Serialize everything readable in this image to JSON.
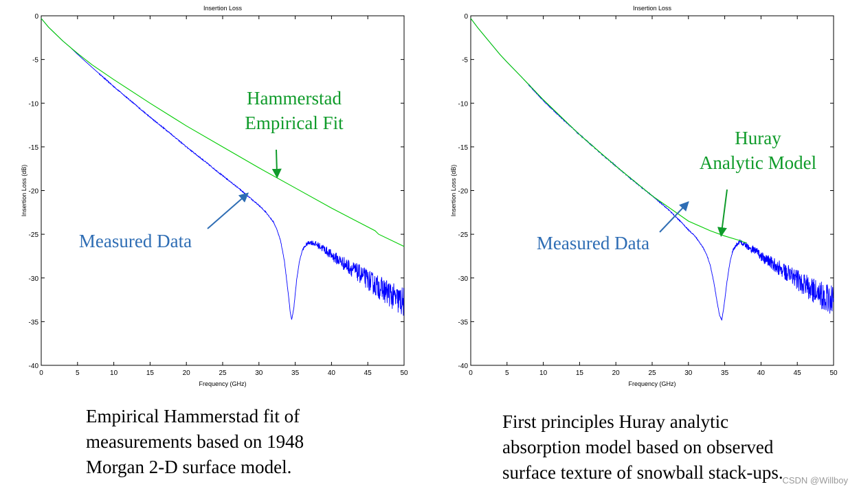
{
  "chart_data": [
    {
      "type": "line",
      "title": "Insertion Loss",
      "xlabel": "Frequency (GHz)",
      "ylabel": "Insertion Loss (dB)",
      "xlim": [
        0,
        50
      ],
      "ylim": [
        -40,
        0
      ],
      "xticks": [
        0,
        5,
        10,
        15,
        20,
        25,
        30,
        35,
        40,
        45,
        50
      ],
      "yticks": [
        0,
        -5,
        -10,
        -15,
        -20,
        -25,
        -30,
        -35,
        -40
      ],
      "grid": false,
      "series": [
        {
          "name": "Measured Data",
          "color": "#0000ff",
          "noisy_from_x": 36,
          "x": [
            0,
            1,
            2,
            3,
            4,
            5,
            7,
            10,
            12,
            15,
            18,
            20,
            22,
            25,
            27,
            28,
            29,
            30,
            31,
            32,
            32.5,
            33,
            33.5,
            34,
            34.3,
            34.5,
            34.8,
            35.2,
            35.6,
            36,
            36.5,
            37,
            37.5,
            38,
            39,
            40,
            42,
            44,
            46,
            48,
            49,
            50
          ],
          "values": [
            -0.3,
            -1.3,
            -2.1,
            -2.9,
            -3.6,
            -4.4,
            -5.9,
            -8.1,
            -9.5,
            -11.6,
            -13.6,
            -15.0,
            -16.3,
            -18.3,
            -19.6,
            -20.3,
            -21.0,
            -21.7,
            -22.5,
            -23.6,
            -24.5,
            -25.8,
            -28.0,
            -31.5,
            -33.8,
            -34.8,
            -33.5,
            -30.2,
            -28.0,
            -26.8,
            -26.2,
            -25.9,
            -26.0,
            -26.2,
            -26.7,
            -27.4,
            -28.5,
            -29.6,
            -30.8,
            -31.8,
            -32.5,
            -32.8
          ]
        },
        {
          "name": "Hammerstad Empirical Fit",
          "color": "#00cc00",
          "noisy_from_x": null,
          "x": [
            0,
            1,
            2,
            3,
            4,
            5,
            7,
            10,
            15,
            20,
            25,
            30,
            35,
            40,
            46,
            46.5,
            50
          ],
          "values": [
            -0.3,
            -1.3,
            -2.1,
            -2.9,
            -3.6,
            -4.3,
            -5.6,
            -7.3,
            -10.0,
            -12.6,
            -15.0,
            -17.4,
            -19.7,
            -22.0,
            -24.6,
            -25.0,
            -26.4
          ]
        }
      ],
      "annotations": {
        "model_label_line1": "Hammerstad",
        "model_label_line2": "Empirical Fit",
        "model_arrow_tip": [
          32.5,
          -18.5
        ],
        "data_label": "Measured Data",
        "data_arrow_tip": [
          28.5,
          -20.3
        ]
      },
      "caption": [
        "Empirical Hammerstad fit of",
        "measurements based on 1948",
        "Morgan 2-D surface model."
      ]
    },
    {
      "type": "line",
      "title": "Insertion Loss",
      "xlabel": "Frequency (GHz)",
      "ylabel": "Insertion Loss (dB)",
      "xlim": [
        0,
        50
      ],
      "ylim": [
        -40,
        0
      ],
      "xticks": [
        0,
        5,
        10,
        15,
        20,
        25,
        30,
        35,
        40,
        45,
        50
      ],
      "yticks": [
        0,
        -5,
        -10,
        -15,
        -20,
        -25,
        -30,
        -35,
        -40
      ],
      "grid": false,
      "series": [
        {
          "name": "Measured Data",
          "color": "#0000ff",
          "noisy_from_x": 36,
          "x": [
            0,
            1,
            2,
            3,
            4,
            5,
            7,
            10,
            12,
            15,
            18,
            20,
            22,
            25,
            27,
            28,
            29,
            30,
            31,
            32,
            32.5,
            33,
            33.5,
            34,
            34.3,
            34.6,
            34.9,
            35.3,
            35.7,
            36.1,
            36.6,
            37,
            37.5,
            38,
            39,
            40,
            42,
            44,
            46,
            48,
            49,
            50
          ],
          "values": [
            -0.3,
            -1.4,
            -2.4,
            -3.4,
            -4.4,
            -5.3,
            -7.0,
            -9.7,
            -11.3,
            -13.6,
            -15.8,
            -17.2,
            -18.6,
            -20.6,
            -22.0,
            -22.8,
            -23.6,
            -24.5,
            -25.3,
            -26.5,
            -27.3,
            -28.5,
            -30.5,
            -33.0,
            -34.3,
            -34.8,
            -33.2,
            -30.5,
            -28.3,
            -26.9,
            -26.2,
            -25.9,
            -26.0,
            -26.3,
            -26.8,
            -27.5,
            -28.6,
            -29.7,
            -30.8,
            -31.8,
            -32.3,
            -32.6
          ]
        },
        {
          "name": "Huray Analytic Model",
          "color": "#00cc00",
          "noisy_from_x": null,
          "x": [
            0,
            1,
            2,
            3,
            4,
            5,
            7,
            10,
            15,
            20,
            25,
            30,
            33,
            35,
            37,
            38
          ],
          "values": [
            -0.3,
            -1.4,
            -2.4,
            -3.4,
            -4.4,
            -5.3,
            -7.0,
            -9.6,
            -13.6,
            -17.2,
            -20.6,
            -23.5,
            -24.6,
            -25.2,
            -25.7,
            -26.0
          ]
        }
      ],
      "annotations": {
        "model_label_line1": "Huray",
        "model_label_line2": "Analytic Model",
        "model_arrow_tip": [
          34.5,
          -25.2
        ],
        "data_label": "Measured Data",
        "data_arrow_tip": [
          30.0,
          -21.3
        ]
      },
      "caption": [
        "First principles Huray analytic",
        "absorption model based on observed",
        "surface texture of  snowball stack-ups."
      ]
    }
  ],
  "watermark": "CSDN @Willboy"
}
